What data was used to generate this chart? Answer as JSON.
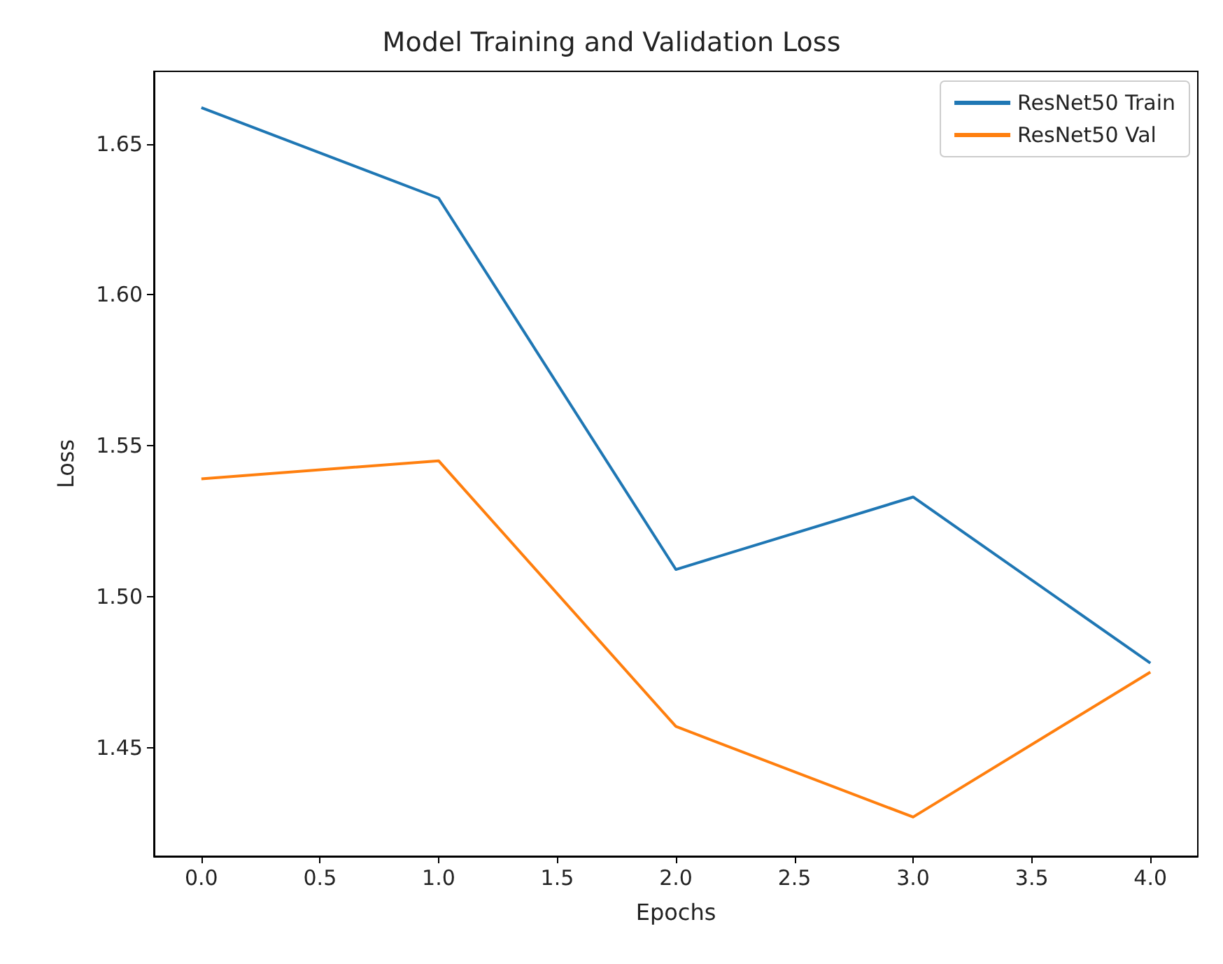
{
  "chart_data": {
    "type": "line",
    "title": "Model Training and Validation Loss",
    "xlabel": "Epochs",
    "ylabel": "Loss",
    "x": [
      0,
      1,
      2,
      3,
      4
    ],
    "series": [
      {
        "name": "ResNet50 Train",
        "color": "#1f77b4",
        "values": [
          1.662,
          1.632,
          1.509,
          1.533,
          1.478
        ]
      },
      {
        "name": "ResNet50 Val",
        "color": "#ff7f0e",
        "values": [
          1.539,
          1.545,
          1.457,
          1.427,
          1.475
        ]
      }
    ],
    "xlim": [
      -0.2,
      4.2
    ],
    "xticks": [
      {
        "value": 0,
        "label": "0.0"
      },
      {
        "value": 0.5,
        "label": "0.5"
      },
      {
        "value": 1,
        "label": "1.0"
      },
      {
        "value": 1.5,
        "label": "1.5"
      },
      {
        "value": 2,
        "label": "2.0"
      },
      {
        "value": 2.5,
        "label": "2.5"
      },
      {
        "value": 3,
        "label": "3.0"
      },
      {
        "value": 3.5,
        "label": "3.5"
      },
      {
        "value": 4,
        "label": "4.0"
      }
    ],
    "ylim": [
      1.414,
      1.674
    ],
    "yticks": [
      {
        "value": 1.45,
        "label": "1.45"
      },
      {
        "value": 1.5,
        "label": "1.50"
      },
      {
        "value": 1.55,
        "label": "1.55"
      },
      {
        "value": 1.6,
        "label": "1.60"
      },
      {
        "value": 1.65,
        "label": "1.65"
      }
    ],
    "legend": "top right",
    "grid": false,
    "marker": "none",
    "line_style": "solid"
  }
}
